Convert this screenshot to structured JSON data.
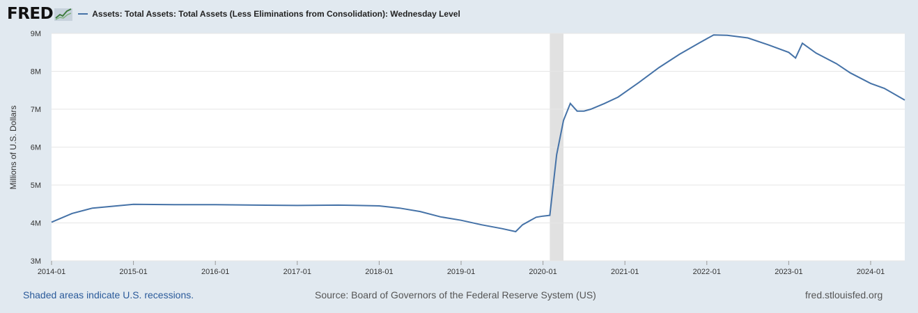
{
  "header": {
    "logo_text": "FRED",
    "series_title": "Assets: Total Assets: Total Assets (Less Eliminations from Consolidation): Wednesday Level"
  },
  "footer": {
    "recession_note": "Shaded areas indicate U.S. recessions.",
    "source": "Source: Board of Governors of the Federal Reserve System (US)",
    "site": "fred.stlouisfed.org"
  },
  "colors": {
    "line": "#4572a7",
    "recession": "#e1e1e1",
    "grid": "#e6e6e6",
    "background": "#e1e9f0"
  },
  "chart_data": {
    "type": "line",
    "title": "Assets: Total Assets: Total Assets (Less Eliminations from Consolidation): Wednesday Level",
    "ylabel": "Millions of U.S. Dollars",
    "xlabel": "",
    "ylim": [
      3000000,
      9000000
    ],
    "xlim": [
      "2014-01",
      "2024-06"
    ],
    "y_ticks": [
      {
        "value": 3000000,
        "label": "3M"
      },
      {
        "value": 4000000,
        "label": "4M"
      },
      {
        "value": 5000000,
        "label": "5M"
      },
      {
        "value": 6000000,
        "label": "6M"
      },
      {
        "value": 7000000,
        "label": "7M"
      },
      {
        "value": 8000000,
        "label": "8M"
      },
      {
        "value": 9000000,
        "label": "9M"
      }
    ],
    "x_ticks": [
      "2014-01",
      "2015-01",
      "2016-01",
      "2017-01",
      "2018-01",
      "2019-01",
      "2020-01",
      "2021-01",
      "2022-01",
      "2023-01",
      "2024-01"
    ],
    "recessions": [
      {
        "start": "2020-02",
        "end": "2020-04"
      }
    ],
    "grid": true,
    "series": [
      {
        "name": "Assets: Total Assets: Total Assets (Less Eliminations from Consolidation): Wednesday Level",
        "x": [
          "2014-01",
          "2014-04",
          "2014-07",
          "2014-10",
          "2015-01",
          "2015-07",
          "2016-01",
          "2016-07",
          "2017-01",
          "2017-07",
          "2017-10",
          "2018-01",
          "2018-04",
          "2018-07",
          "2018-10",
          "2019-01",
          "2019-04",
          "2019-07",
          "2019-09",
          "2019-10",
          "2019-12",
          "2020-01",
          "2020-02",
          "2020-03",
          "2020-04",
          "2020-05",
          "2020-06",
          "2020-07",
          "2020-08",
          "2020-10",
          "2020-12",
          "2021-03",
          "2021-06",
          "2021-09",
          "2021-12",
          "2022-02",
          "2022-04",
          "2022-07",
          "2022-10",
          "2023-01",
          "2023-02",
          "2023-03",
          "2023-05",
          "2023-08",
          "2023-10",
          "2024-01",
          "2024-03",
          "2024-06"
        ],
        "y": [
          4020000,
          4250000,
          4390000,
          4440000,
          4490000,
          4480000,
          4480000,
          4470000,
          4460000,
          4470000,
          4460000,
          4450000,
          4390000,
          4300000,
          4160000,
          4070000,
          3950000,
          3850000,
          3770000,
          3950000,
          4150000,
          4180000,
          4200000,
          5800000,
          6700000,
          7150000,
          6950000,
          6950000,
          7000000,
          7150000,
          7320000,
          7700000,
          8100000,
          8450000,
          8760000,
          8960000,
          8950000,
          8880000,
          8700000,
          8500000,
          8350000,
          8740000,
          8480000,
          8200000,
          7960000,
          7680000,
          7550000,
          7240000
        ]
      }
    ]
  }
}
